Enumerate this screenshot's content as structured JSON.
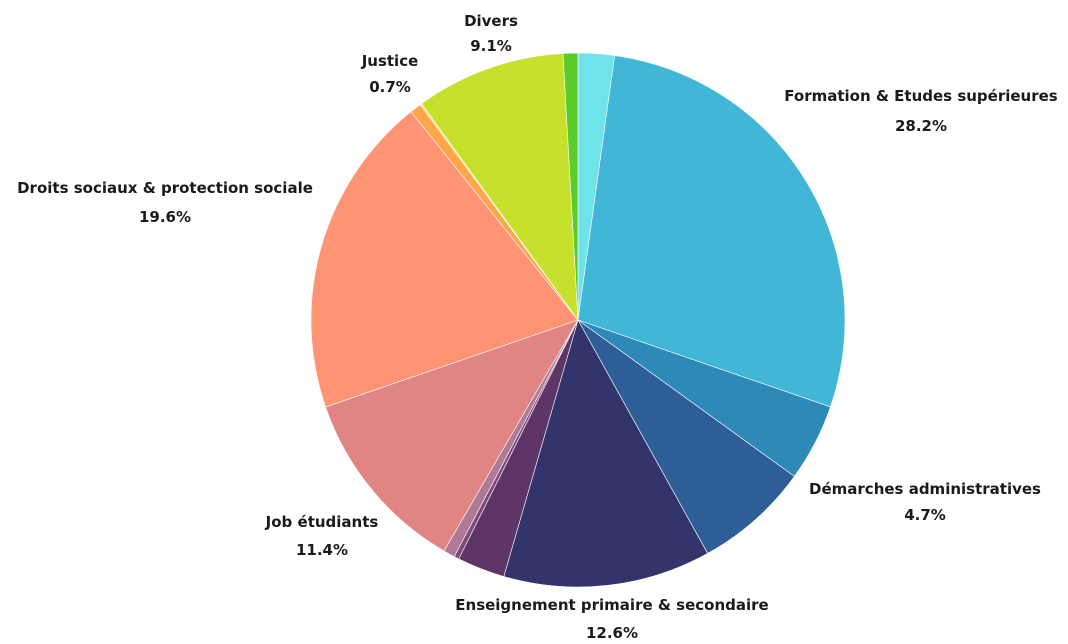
{
  "chart_data": {
    "type": "pie",
    "title": "",
    "start_angle_deg": 0,
    "direction": "clockwise",
    "slices": [
      {
        "name": "",
        "value": 2.2,
        "color": "#6ee3e8"
      },
      {
        "name": "Formation & Etudes supérieures",
        "value": 28.2,
        "value_label": "28.2%",
        "color": "#42b6d6"
      },
      {
        "name": "Démarches administratives",
        "value": 4.7,
        "value_label": "4.7%",
        "color": "#2d8ab8"
      },
      {
        "name": "",
        "value": 7.0,
        "color": "#2e5e98"
      },
      {
        "name": "Enseignement primaire & secondaire",
        "value": 12.6,
        "value_label": "12.6%",
        "color": "#33346b"
      },
      {
        "name": "",
        "value": 2.9,
        "color": "#5e3566"
      },
      {
        "name": "",
        "value": 0.3,
        "color": "#7b4a78"
      },
      {
        "name": "",
        "value": 0.7,
        "color": "#b07a96"
      },
      {
        "name": "Job étudiants",
        "value": 11.4,
        "value_label": "11.4%",
        "color": "#e08484"
      },
      {
        "name": "Droits sociaux & protection sociale",
        "value": 19.6,
        "value_label": "19.6%",
        "color": "#ff9474"
      },
      {
        "name": "Justice",
        "value": 0.7,
        "value_label": "0.7%",
        "color": "#ffa64a"
      },
      {
        "name": "",
        "value": 0.1,
        "color": "#f6e45a"
      },
      {
        "name": "Divers",
        "value": 9.1,
        "value_label": "9.1%",
        "color": "#c6e02c"
      },
      {
        "name": "",
        "value": 0.9,
        "color": "#5acd2a"
      }
    ]
  }
}
